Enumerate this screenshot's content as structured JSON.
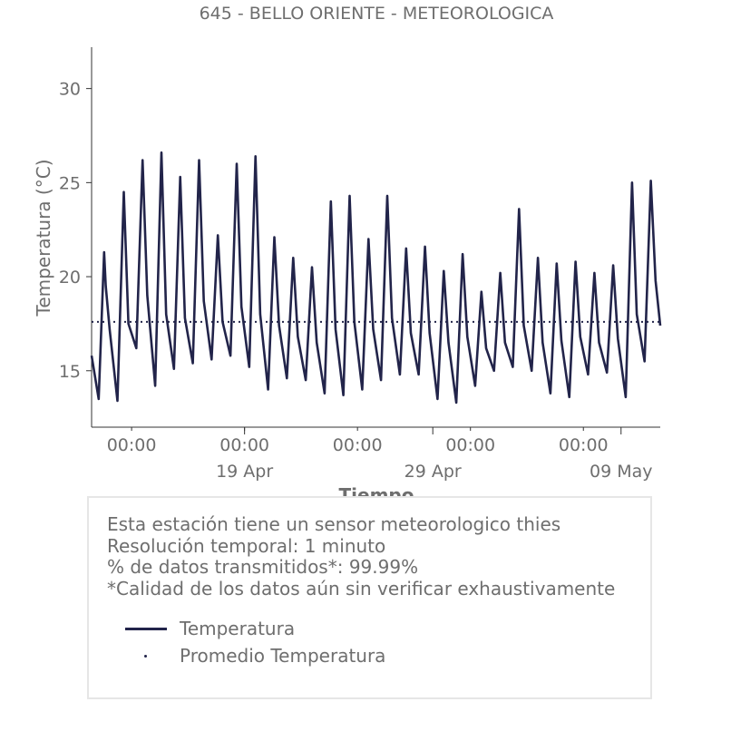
{
  "colors": {
    "series": "#22244a",
    "text": "#6e6e6e",
    "axis": "#333333",
    "box_border": "#e6e6e6"
  },
  "chart_data": {
    "type": "line",
    "title": "645 - BELLO ORIENTE - METEOROLOGICA",
    "xlabel": "Tiempo",
    "ylabel": "Temperatura (°C)",
    "ylim": [
      12.0,
      32.2
    ],
    "xlim": [
      "2021-04-10 21:00",
      "2021-05-11 02:00"
    ],
    "yticks": [
      15,
      20,
      25,
      30
    ],
    "xticks_major": [
      {
        "time": "2021-04-19 00:00",
        "label": "19 Apr"
      },
      {
        "time": "2021-04-29 00:00",
        "label": "29 Apr"
      },
      {
        "time": "2021-05-09 00:00",
        "label": "09 May"
      }
    ],
    "xticks_minor": [
      {
        "time": "2021-04-13 00:00",
        "label": "00:00"
      },
      {
        "time": "2021-04-19 00:00",
        "label": "00:00"
      },
      {
        "time": "2021-04-25 00:00",
        "label": "00:00"
      },
      {
        "time": "2021-05-01 00:00",
        "label": "00:00"
      },
      {
        "time": "2021-05-07 00:00",
        "label": "00:00"
      }
    ],
    "grid": false,
    "legend": "bottom-box",
    "series": [
      {
        "name": "Temperatura",
        "style": "solid",
        "points": [
          [
            "2021-04-10 21:00",
            15.8
          ],
          [
            "2021-04-11 06:00",
            13.5
          ],
          [
            "2021-04-11 13:00",
            21.3
          ],
          [
            "2021-04-11 15:00",
            19.5
          ],
          [
            "2021-04-11 20:00",
            17.2
          ],
          [
            "2021-04-12 06:00",
            13.4
          ],
          [
            "2021-04-12 14:00",
            24.5
          ],
          [
            "2021-04-12 20:00",
            17.5
          ],
          [
            "2021-04-13 06:00",
            16.2
          ],
          [
            "2021-04-13 14:00",
            26.2
          ],
          [
            "2021-04-13 20:00",
            19.0
          ],
          [
            "2021-04-14 06:00",
            14.2
          ],
          [
            "2021-04-14 14:00",
            26.6
          ],
          [
            "2021-04-14 20:00",
            18.0
          ],
          [
            "2021-04-15 06:00",
            15.1
          ],
          [
            "2021-04-15 14:00",
            25.3
          ],
          [
            "2021-04-15 20:00",
            17.8
          ],
          [
            "2021-04-16 06:00",
            15.4
          ],
          [
            "2021-04-16 14:00",
            26.2
          ],
          [
            "2021-04-16 20:00",
            18.7
          ],
          [
            "2021-04-17 06:00",
            15.6
          ],
          [
            "2021-04-17 14:00",
            22.2
          ],
          [
            "2021-04-17 20:00",
            17.6
          ],
          [
            "2021-04-18 06:00",
            15.8
          ],
          [
            "2021-04-18 14:00",
            26.0
          ],
          [
            "2021-04-18 20:00",
            18.4
          ],
          [
            "2021-04-19 06:00",
            15.2
          ],
          [
            "2021-04-19 14:00",
            26.4
          ],
          [
            "2021-04-19 20:00",
            18.0
          ],
          [
            "2021-04-20 06:00",
            14.0
          ],
          [
            "2021-04-20 14:00",
            22.1
          ],
          [
            "2021-04-20 20:00",
            17.4
          ],
          [
            "2021-04-21 06:00",
            14.6
          ],
          [
            "2021-04-21 14:00",
            21.0
          ],
          [
            "2021-04-21 20:00",
            16.8
          ],
          [
            "2021-04-22 06:00",
            14.5
          ],
          [
            "2021-04-22 14:00",
            20.5
          ],
          [
            "2021-04-22 20:00",
            16.5
          ],
          [
            "2021-04-23 06:00",
            13.8
          ],
          [
            "2021-04-23 14:00",
            24.0
          ],
          [
            "2021-04-23 20:00",
            17.2
          ],
          [
            "2021-04-24 06:00",
            13.7
          ],
          [
            "2021-04-24 14:00",
            24.3
          ],
          [
            "2021-04-24 20:00",
            17.6
          ],
          [
            "2021-04-25 06:00",
            14.0
          ],
          [
            "2021-04-25 14:00",
            22.0
          ],
          [
            "2021-04-25 20:00",
            17.2
          ],
          [
            "2021-04-26 06:00",
            14.5
          ],
          [
            "2021-04-26 14:00",
            24.3
          ],
          [
            "2021-04-26 20:00",
            17.8
          ],
          [
            "2021-04-27 06:00",
            14.8
          ],
          [
            "2021-04-27 14:00",
            21.5
          ],
          [
            "2021-04-27 20:00",
            17.0
          ],
          [
            "2021-04-28 06:00",
            14.8
          ],
          [
            "2021-04-28 14:00",
            21.6
          ],
          [
            "2021-04-28 20:00",
            17.0
          ],
          [
            "2021-04-29 06:00",
            13.5
          ],
          [
            "2021-04-29 14:00",
            20.3
          ],
          [
            "2021-04-29 20:00",
            16.5
          ],
          [
            "2021-04-30 06:00",
            13.3
          ],
          [
            "2021-04-30 14:00",
            21.2
          ],
          [
            "2021-04-30 20:00",
            16.8
          ],
          [
            "2021-05-01 06:00",
            14.2
          ],
          [
            "2021-05-01 14:00",
            19.2
          ],
          [
            "2021-05-01 20:00",
            16.2
          ],
          [
            "2021-05-02 06:00",
            15.0
          ],
          [
            "2021-05-02 14:00",
            20.2
          ],
          [
            "2021-05-02 20:00",
            16.5
          ],
          [
            "2021-05-03 06:00",
            15.2
          ],
          [
            "2021-05-03 14:00",
            23.6
          ],
          [
            "2021-05-03 20:00",
            17.4
          ],
          [
            "2021-05-04 06:00",
            15.0
          ],
          [
            "2021-05-04 14:00",
            21.0
          ],
          [
            "2021-05-04 20:00",
            16.5
          ],
          [
            "2021-05-05 06:00",
            13.8
          ],
          [
            "2021-05-05 14:00",
            20.7
          ],
          [
            "2021-05-05 20:00",
            16.6
          ],
          [
            "2021-05-06 06:00",
            13.6
          ],
          [
            "2021-05-06 14:00",
            20.8
          ],
          [
            "2021-05-06 20:00",
            16.8
          ],
          [
            "2021-05-07 06:00",
            14.8
          ],
          [
            "2021-05-07 14:00",
            20.2
          ],
          [
            "2021-05-07 20:00",
            16.5
          ],
          [
            "2021-05-08 06:00",
            14.9
          ],
          [
            "2021-05-08 14:00",
            20.6
          ],
          [
            "2021-05-08 20:00",
            16.7
          ],
          [
            "2021-05-09 06:00",
            13.6
          ],
          [
            "2021-05-09 14:00",
            25.0
          ],
          [
            "2021-05-09 20:00",
            18.0
          ],
          [
            "2021-05-10 06:00",
            15.5
          ],
          [
            "2021-05-10 14:00",
            25.1
          ],
          [
            "2021-05-10 20:00",
            19.8
          ],
          [
            "2021-05-11 02:00",
            17.4
          ]
        ]
      },
      {
        "name": "Promedio Temperatura",
        "style": "dotted",
        "value": 17.6
      }
    ]
  },
  "info_box": {
    "lines": [
      "Esta estación tiene un sensor meteorologico thies",
      "Resolución temporal: 1 minuto",
      "% de datos transmitidos*: 99.99%",
      "*Calidad de los datos aún sin verificar exhaustivamente"
    ],
    "legend": [
      {
        "label": "Temperatura",
        "style": "line"
      },
      {
        "label": "Promedio Temperatura",
        "style": "dot"
      }
    ]
  }
}
